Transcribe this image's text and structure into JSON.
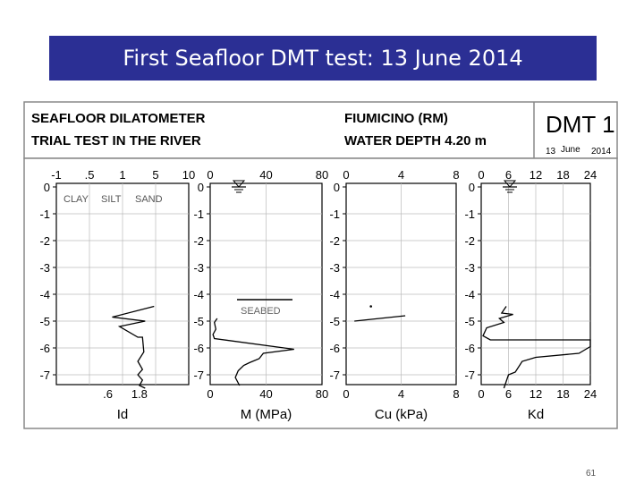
{
  "slide": {
    "title": "First Seafloor DMT test: 13 June 2014",
    "page_number": "61"
  },
  "colors": {
    "title_bg": "#2b2f94",
    "title_text": "#ffffff",
    "trace": "#000000"
  },
  "figure_header": {
    "left_line1": "SEAFLOOR DILATOMETER",
    "left_line2": "TRIAL TEST IN THE RIVER",
    "mid_line1": "FIUMICINO (RM)",
    "mid_line2": "WATER DEPTH 4.20 m",
    "badge_title": "DMT 1",
    "badge_date_day": "13",
    "badge_date_month": "June",
    "badge_date_year": "2014"
  },
  "icons": {
    "water_level": "water-level-icon"
  },
  "chart_data": [
    {
      "type": "line",
      "xlabel": "Id",
      "x_scale": "log",
      "xlim": [
        0.1,
        10
      ],
      "top_ticks": [
        "-1",
        ".5",
        "1",
        "5",
        "10"
      ],
      "bottom_ticks": [
        ".6",
        "1.8"
      ],
      "ylim": [
        0,
        -7.5
      ],
      "y_ticks": [
        "0",
        "-1",
        "-2",
        "-3",
        "-4",
        "-5",
        "-6",
        "-7"
      ],
      "zone_labels": [
        "CLAY",
        "SILT",
        "SAND"
      ],
      "grid": true,
      "series": [
        {
          "points": [
            [
              3.0,
              -4.45
            ],
            [
              0.7,
              -4.85
            ],
            [
              2.2,
              -5.0
            ],
            [
              0.9,
              -5.2
            ],
            [
              1.7,
              -5.6
            ],
            [
              2.0,
              -5.6
            ],
            [
              2.1,
              -6.15
            ],
            [
              1.7,
              -6.5
            ],
            [
              2.0,
              -6.8
            ],
            [
              1.7,
              -7.0
            ],
            [
              2.0,
              -7.2
            ],
            [
              1.8,
              -7.4
            ],
            [
              2.2,
              -7.5
            ]
          ]
        }
      ]
    },
    {
      "type": "line",
      "xlabel": "M (MPa)",
      "xlim": [
        0,
        80
      ],
      "top_ticks": [
        "0",
        "40",
        "80"
      ],
      "bottom_ticks": [
        "0",
        "40",
        "80"
      ],
      "ylim": [
        0,
        -7.5
      ],
      "y_ticks": [
        "0",
        "-1",
        "-2",
        "-3",
        "-4",
        "-5",
        "-6",
        "-7"
      ],
      "annotations": [
        "SEABED"
      ],
      "seabed_depth": -4.2,
      "water_level_depth": 0,
      "grid": true,
      "series": [
        {
          "points": [
            [
              5,
              -4.9
            ],
            [
              3,
              -5.05
            ],
            [
              4,
              -5.3
            ],
            [
              2,
              -5.5
            ],
            [
              3,
              -5.65
            ],
            [
              60,
              -6.05
            ],
            [
              38,
              -6.2
            ],
            [
              35,
              -6.4
            ],
            [
              28,
              -6.55
            ],
            [
              24,
              -6.65
            ],
            [
              20,
              -6.85
            ],
            [
              18,
              -7.1
            ],
            [
              21,
              -7.4
            ]
          ]
        }
      ]
    },
    {
      "type": "line",
      "xlabel": "Cu (kPa)",
      "xlim": [
        0,
        8
      ],
      "top_ticks": [
        "0",
        "4",
        "8"
      ],
      "bottom_ticks": [
        "0",
        "4",
        "8"
      ],
      "ylim": [
        0,
        -7.5
      ],
      "y_ticks": [
        "0",
        "-1",
        "-2",
        "-3",
        "-4",
        "-5",
        "-6",
        "-7"
      ],
      "grid": true,
      "series": [
        {
          "points": [
            [
              0.6,
              -5.0
            ],
            [
              4.3,
              -4.8
            ]
          ]
        },
        {
          "points": [
            [
              1.8,
              -4.45
            ]
          ],
          "style": "point"
        }
      ]
    },
    {
      "type": "line",
      "xlabel": "Kd",
      "xlim": [
        0,
        24
      ],
      "top_ticks": [
        "0",
        "6",
        "12",
        "18",
        "24"
      ],
      "bottom_ticks": [
        "0",
        "6",
        "12",
        "18",
        "24"
      ],
      "ylim": [
        0,
        -7.5
      ],
      "y_ticks": [
        "0",
        "-1",
        "-2",
        "-3",
        "-4",
        "-5",
        "-6",
        "-7"
      ],
      "water_level_depth": 0,
      "grid": true,
      "series": [
        {
          "points": [
            [
              5.5,
              -4.45
            ],
            [
              4.5,
              -4.7
            ],
            [
              7.0,
              -4.75
            ],
            [
              4.0,
              -4.9
            ],
            [
              5.0,
              -5.05
            ],
            [
              1.2,
              -5.25
            ],
            [
              0.4,
              -5.55
            ],
            [
              2.0,
              -5.7
            ],
            [
              24,
              -5.7
            ],
            [
              24,
              -5.95
            ],
            [
              23,
              -6.05
            ],
            [
              21.5,
              -6.2
            ],
            [
              12,
              -6.35
            ],
            [
              9,
              -6.5
            ],
            [
              7.5,
              -6.9
            ],
            [
              6.0,
              -7.0
            ],
            [
              5.0,
              -7.5
            ]
          ]
        }
      ]
    }
  ]
}
